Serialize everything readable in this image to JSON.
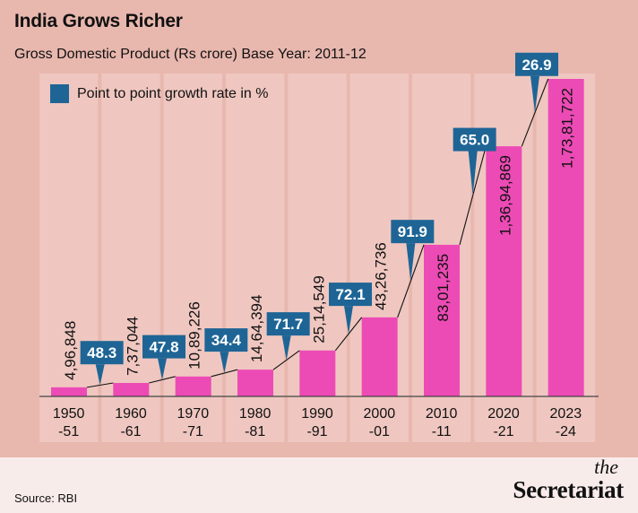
{
  "header": {
    "title": "India Grows Richer",
    "subtitle": "Gross Domestic Product (Rs crore) Base Year: 2011-12"
  },
  "legend": {
    "label": "Point to point growth rate in %",
    "color": "#1e6596"
  },
  "footer": {
    "source": "Source: RBI",
    "brand_the": "the",
    "brand_name": "Secretariat"
  },
  "colors": {
    "background": "#e8b7ae",
    "panel": "#efc7c0",
    "bar": "#ec4bb5",
    "callout": "#1e6596",
    "footer": "#f8ecea"
  },
  "chart_data": {
    "type": "bar",
    "title": "India Grows Richer",
    "subtitle": "Gross Domestic Product (Rs crore) Base Year: 2011-12",
    "xlabel": "",
    "ylabel": "GDP (Rs crore)",
    "ylim": [
      0,
      17381722
    ],
    "grid": false,
    "legend_position": "top-left",
    "categories": [
      [
        "1950",
        "-51"
      ],
      [
        "1960",
        "-61"
      ],
      [
        "1970",
        "-71"
      ],
      [
        "1980",
        "-81"
      ],
      [
        "1990",
        "-91"
      ],
      [
        "2000",
        "-01"
      ],
      [
        "2010",
        "-11"
      ],
      [
        "2020",
        "-21"
      ],
      [
        "2023",
        "-24"
      ]
    ],
    "series": [
      {
        "name": "GDP (Rs crore)",
        "values": [
          496848,
          737044,
          1089226,
          1464394,
          2514549,
          4326736,
          8301235,
          13694869,
          17381722
        ],
        "labels": [
          "4,96,848",
          "7,37,044",
          "10,89,226",
          "14,64,394",
          "25,14,549",
          "43,26,736",
          "83,01,235",
          "1,36,94,869",
          "1,73,81,722"
        ]
      },
      {
        "name": "Point to point growth rate in %",
        "values": [
          48.3,
          47.8,
          34.4,
          71.7,
          72.1,
          91.9,
          65.0,
          26.9
        ],
        "labels": [
          "48.3",
          "47.8",
          "34.4",
          "71.7",
          "72.1",
          "91.9",
          "65.0",
          "26.9"
        ]
      }
    ]
  }
}
